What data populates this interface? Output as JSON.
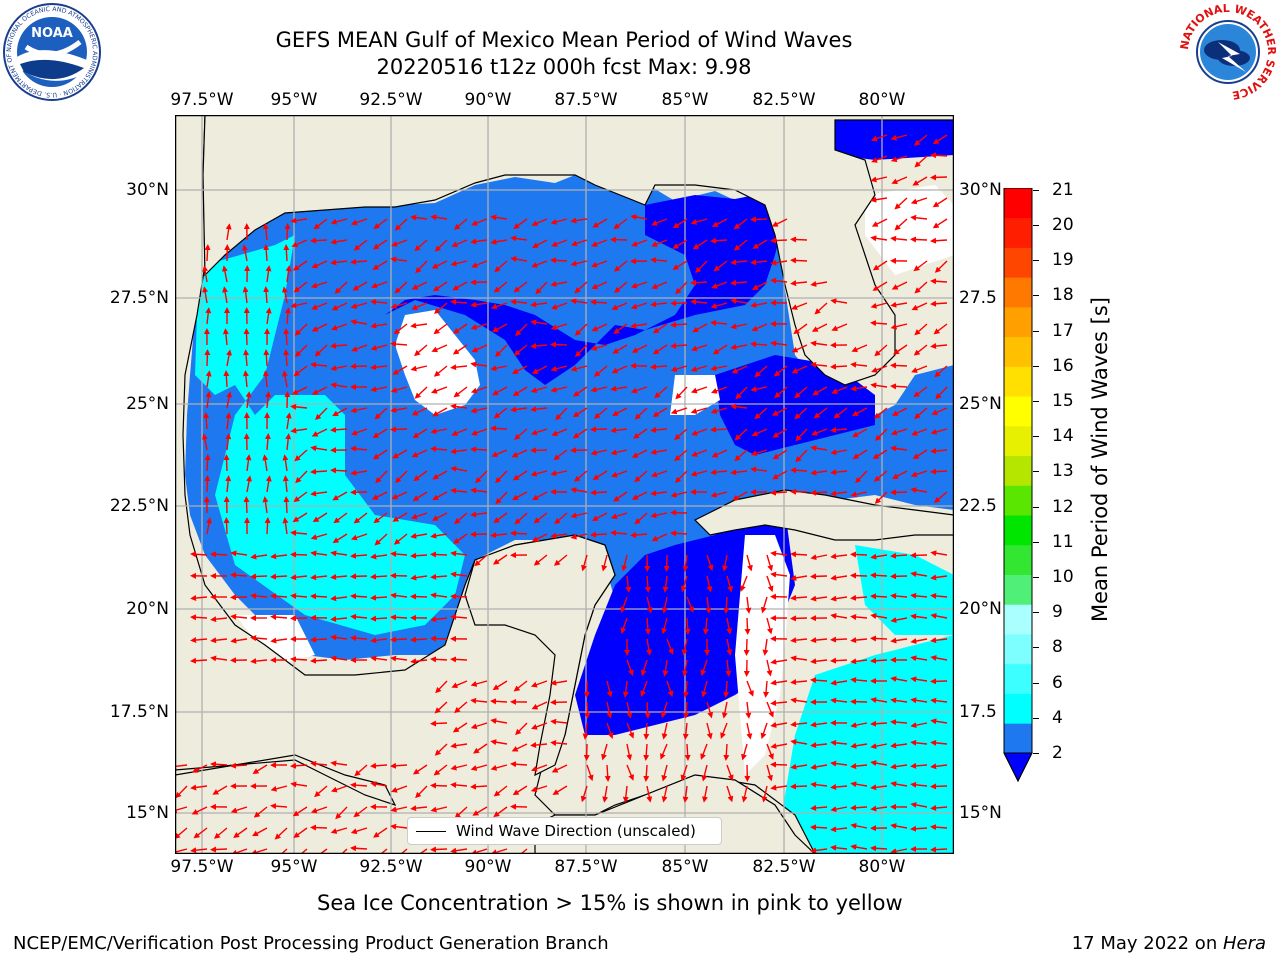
{
  "title": {
    "line1": "GEFS MEAN Gulf of Mexico Mean Period of Wind Waves",
    "line2": "20220516 t12z 000h fcst   Max: 9.98"
  },
  "map": {
    "lon_labels": [
      "97.5°W",
      "95°W",
      "92.5°W",
      "90°W",
      "87.5°W",
      "85°W",
      "82.5°W",
      "80°W"
    ],
    "lat_labels_left": [
      "30°N",
      "27.5°N",
      "25°N",
      "22.5°N",
      "20°N",
      "17.5°N",
      "15°N"
    ],
    "lat_labels_right": [
      "30°N",
      "27.5",
      "25°N",
      "22.5",
      "20°N",
      "17.5",
      "15°N"
    ],
    "legend_label": "Wind Wave Direction (unscaled)",
    "land_color": "#eeecdc",
    "arrow_color": "#ff0000"
  },
  "colorbar": {
    "label": "Mean Period of Wind Waves [s]",
    "ticks": [
      "2",
      "4",
      "6",
      "7",
      "8",
      "9",
      "10",
      "11",
      "12",
      "13",
      "14",
      "15",
      "16",
      "17",
      "18",
      "19",
      "20",
      "21"
    ],
    "colors": [
      "#1e78f0",
      "#00ffff",
      "#3cffff",
      "#7dffff",
      "#aaffff",
      "#50f078",
      "#32e632",
      "#00e600",
      "#5ae600",
      "#b4e600",
      "#e6f000",
      "#ffff00",
      "#ffe000",
      "#ffc000",
      "#ffa000",
      "#ff7800",
      "#ff4600",
      "#ff1e00",
      "#ff0000"
    ],
    "under_color": "#0000ff"
  },
  "subtitle": "Sea Ice Concentration > 15% is shown in pink to yellow",
  "footer": {
    "left": "NCEP/EMC/Verification Post Processing Product Generation Branch",
    "date": "17 May 2022 on ",
    "machine": "Hera"
  },
  "logos": {
    "noaa_text": "NOAA",
    "noaa_ring": "NATIONAL OCEANIC AND ATMOSPHERIC ADMINISTRATION · U.S. DEPARTMENT OF COMMERCE",
    "nws_ring": "NATIONAL WEATHER SERVICE"
  }
}
